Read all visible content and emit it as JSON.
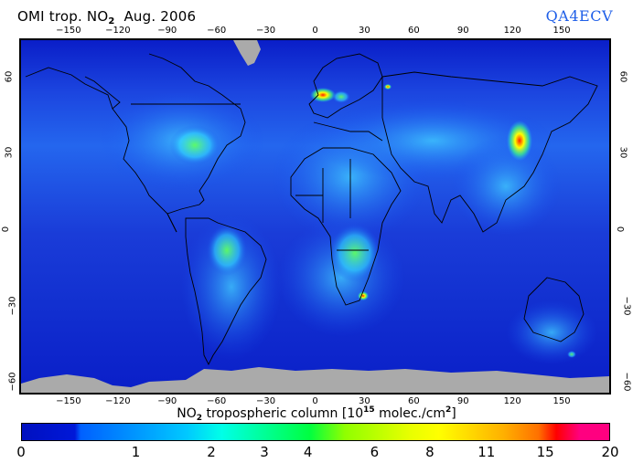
{
  "header": {
    "title_prefix": "OMI trop. NO",
    "title_sub": "2",
    "title_date": "Aug. 2006",
    "brand": "QA4ECV"
  },
  "map": {
    "projection": "equirectangular",
    "lon_range": [
      -180,
      180
    ],
    "lat_range": [
      -65,
      75
    ],
    "ocean_color": "#0a1ec8",
    "no_data_color": "#aaaaaa",
    "x_ticks": [
      "-150",
      "-120",
      "-90",
      "-60",
      "-30",
      "0",
      "30",
      "60",
      "90",
      "120",
      "150"
    ],
    "y_ticks": [
      "60",
      "30",
      "0",
      "-30",
      "-60"
    ],
    "hotspots": [
      {
        "region": "Eastern China",
        "level": "high"
      },
      {
        "region": "Western Europe / Benelux",
        "level": "high"
      },
      {
        "region": "Eastern USA",
        "level": "medium"
      },
      {
        "region": "Southern Africa biomass burning",
        "level": "medium-high"
      },
      {
        "region": "South America biomass burning",
        "level": "medium"
      },
      {
        "region": "Highveld South Africa",
        "level": "high"
      },
      {
        "region": "Moscow",
        "level": "medium"
      }
    ]
  },
  "colorbar": {
    "label_prefix": "NO",
    "label_sub": "2",
    "label_mid": " tropospheric column [10",
    "label_sup": "15",
    "label_end": " molec./cm",
    "label_sup2": "2",
    "label_close": "]",
    "ticks": [
      {
        "label": "0",
        "pos": 0.0
      },
      {
        "label": "1",
        "pos": 0.195
      },
      {
        "label": "2",
        "pos": 0.323
      },
      {
        "label": "3",
        "pos": 0.413
      },
      {
        "label": "4",
        "pos": 0.487
      },
      {
        "label": "6",
        "pos": 0.6
      },
      {
        "label": "8",
        "pos": 0.694
      },
      {
        "label": "11",
        "pos": 0.79
      },
      {
        "label": "15",
        "pos": 0.89
      },
      {
        "label": "20",
        "pos": 1.0
      }
    ],
    "stops": [
      "#0010c0",
      "#0018d8",
      "#0060ff",
      "#00c8ff",
      "#00ffe8",
      "#00ff40",
      "#90ff00",
      "#e8ff00",
      "#ffff00",
      "#ffb000",
      "#ff7000",
      "#ff0000",
      "#ff0080"
    ]
  }
}
